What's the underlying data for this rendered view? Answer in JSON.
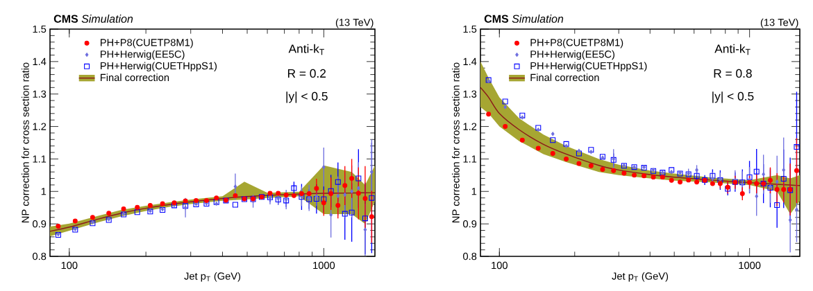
{
  "chart_data": [
    {
      "type": "scatter",
      "title": "**CMS** *Simulation*",
      "xlabel": "Jet p$_{T}$ (GeV)",
      "ylabel": "NP correction for cross section ratio",
      "annotations": [
        "(13 TeV)",
        "Anti-k$_{T}$",
        "R = 0.2",
        "|y| < 0.5"
      ],
      "log": "x",
      "legend": "top left",
      "xlim": [
        84,
        1588
      ],
      "xticks": [
        100,
        1000
      ],
      "ylim": [
        0.8,
        1.5
      ],
      "yticks": [
        0.8,
        0.9,
        1,
        1.1,
        1.2,
        1.3,
        1.4,
        1.5
      ],
      "x": [
        90.5,
        105.5,
        123.5,
        143,
        163.5,
        185,
        208,
        232.5,
        258.5,
        286,
        315,
        346,
        378.5,
        412.5,
        449,
        487.5,
        527.5,
        570,
        615,
        662,
        711.5,
        763.5,
        818,
        875.5,
        936,
        999.5,
        1066.5,
        1136.5,
        1210,
        1287.5,
        1368.5,
        1453.5,
        1542.5
      ],
      "series": [
        {
          "name": "PH+P8(CUETP8M1)",
          "color": "#ff0000",
          "marker": "circle",
          "values": [
            0.893,
            0.909,
            0.92,
            0.933,
            0.946,
            0.951,
            0.957,
            0.962,
            0.965,
            0.971,
            0.972,
            0.972,
            0.98,
            0.973,
            0.987,
            0.977,
            0.977,
            0.983,
            0.994,
            0.994,
            0.989,
            0.987,
            0.993,
            0.993,
            1.009,
            0.965,
            0.993,
            0.957,
            1.018,
            1.04,
            0.994,
            0.978,
            0.922
          ],
          "errors": [
            null,
            null,
            null,
            null,
            null,
            null,
            null,
            null,
            null,
            null,
            null,
            null,
            null,
            null,
            null,
            null,
            null,
            null,
            null,
            null,
            null,
            null,
            null,
            null,
            0.03,
            0.04,
            0.05,
            0.04,
            0.06,
            0.06,
            0.08,
            0.1,
            0.08
          ]
        },
        {
          "name": "PH+Herwig(EE5C)",
          "color": "#6f6fdf",
          "marker": "diamond",
          "values": [
            0.868,
            0.884,
            0.905,
            0.914,
            0.931,
            null,
            0.94,
            0.945,
            0.958,
            0.95,
            0.961,
            0.963,
            0.962,
            null,
            1.015,
            null,
            0.97,
            null,
            0.98,
            0.978,
            0.975,
            null,
            0.985,
            0.98,
            0.985,
            1.075,
            0.928,
            0.986,
            0.99,
            1.0,
            1.01,
            0.882,
            1.06
          ],
          "errors": [
            null,
            null,
            null,
            null,
            null,
            null,
            null,
            null,
            null,
            0.03,
            null,
            null,
            null,
            null,
            0.04,
            null,
            0.02,
            null,
            0.02,
            0.02,
            0.03,
            null,
            0.03,
            0.04,
            0.03,
            0.06,
            0.07,
            0.06,
            0.07,
            0.08,
            0.08,
            0.08,
            0.1
          ]
        },
        {
          "name": "PH+Herwig(CUETHppS1)",
          "color": "#0000ff",
          "marker": "square",
          "values": [
            0.866,
            0.882,
            0.902,
            0.912,
            0.929,
            0.936,
            0.938,
            0.943,
            0.957,
            0.955,
            0.96,
            0.962,
            0.967,
            0.972,
            0.959,
            0.976,
            0.976,
            0.983,
            0.982,
            0.975,
            0.972,
            1.01,
            0.983,
            0.976,
            0.977,
            0.976,
            1.001,
            1.029,
            0.931,
            0.935,
            1.04,
            0.917,
            0.98
          ],
          "errors": [
            null,
            null,
            null,
            null,
            null,
            null,
            null,
            null,
            null,
            null,
            null,
            null,
            null,
            null,
            null,
            null,
            null,
            null,
            0.015,
            0.015,
            0.02,
            0.02,
            0.04,
            0.03,
            0.045,
            0.04,
            0.05,
            0.06,
            0.08,
            0.09,
            0.09,
            0.11,
            0.17
          ]
        },
        {
          "name": "Final correction",
          "type": "line",
          "color": "#8b1a1a",
          "x": [
            84,
            100,
            130,
            160,
            200,
            250,
            300,
            400,
            487.5,
            600,
            800,
            999.5,
            1287.5,
            1453.5,
            1588
          ],
          "values": [
            0.877,
            0.89,
            0.915,
            0.933,
            0.948,
            0.96,
            0.968,
            0.978,
            0.984,
            0.988,
            0.992,
            0.994,
            0.995,
            0.996,
            0.996
          ],
          "lower": [
            0.862,
            0.879,
            0.905,
            0.923,
            0.94,
            0.953,
            0.961,
            0.971,
            0.975,
            0.98,
            0.985,
            0.93,
            0.93,
            0.9,
            0.97
          ],
          "upper": [
            0.892,
            0.901,
            0.925,
            0.943,
            0.956,
            0.967,
            0.975,
            0.985,
            1.03,
            0.996,
            0.999,
            1.08,
            1.06,
            1.02,
            1.08
          ]
        }
      ]
    },
    {
      "type": "scatter",
      "title": "**CMS** *Simulation*",
      "xlabel": "Jet p$_{T}$ (GeV)",
      "ylabel": "NP correction for cross section ratio",
      "annotations": [
        "(13 TeV)",
        "Anti-k$_{T}$",
        "R = 0.8",
        "|y| < 0.5"
      ],
      "log": "x",
      "legend": "top left",
      "xlim": [
        84,
        1588
      ],
      "xticks": [
        100,
        1000
      ],
      "ylim": [
        0.8,
        1.5
      ],
      "yticks": [
        0.8,
        0.9,
        1,
        1.1,
        1.2,
        1.3,
        1.4,
        1.5
      ],
      "x": [
        90.5,
        105.5,
        123.5,
        143,
        163.5,
        185,
        208,
        232.5,
        258.5,
        286,
        315,
        346,
        378.5,
        412.5,
        449,
        487.5,
        527.5,
        570,
        615,
        662,
        711.5,
        763.5,
        818,
        875.5,
        936,
        999.5,
        1066.5,
        1136.5,
        1210,
        1287.5,
        1368.5,
        1453.5,
        1542.5
      ],
      "series": [
        {
          "name": "PH+P8(CUETP8M1)",
          "color": "#ff0000",
          "marker": "circle",
          "values": [
            1.238,
            1.2,
            1.158,
            1.133,
            1.117,
            1.1,
            1.086,
            1.079,
            1.068,
            1.064,
            1.056,
            1.05,
            1.048,
            1.044,
            1.044,
            1.034,
            1.029,
            1.035,
            1.029,
            1.034,
            1.024,
            1.024,
            1.013,
            1.028,
            0.993,
            1.028,
            1.024,
            1.024,
            1.034,
            1.006,
            1.006,
            1.006,
            1.064
          ],
          "errors": [
            null,
            null,
            null,
            null,
            null,
            null,
            null,
            null,
            null,
            null,
            null,
            null,
            null,
            null,
            null,
            null,
            null,
            null,
            null,
            null,
            null,
            0.015,
            0.02,
            0.02,
            0.02,
            0.02,
            0.03,
            0.02,
            0.04,
            0.05,
            0.04,
            0.08,
            0.1
          ]
        },
        {
          "name": "PH+Herwig(EE5C)",
          "color": "#6f6fdf",
          "marker": "diamond",
          "values": [
            1.34,
            1.26,
            1.228,
            1.19,
            1.177,
            1.14,
            1.125,
            1.122,
            1.104,
            1.1,
            1.08,
            1.075,
            1.075,
            1.066,
            1.058,
            1.06,
            1.058,
            1.055,
            1.066,
            null,
            1.04,
            1.038,
            null,
            1.035,
            1.022,
            1.035,
            0.985,
            1.053,
            1.015,
            1.03,
            1.066,
            0.912,
            0.944
          ],
          "errors": [
            null,
            null,
            null,
            null,
            null,
            null,
            null,
            null,
            null,
            0.03,
            null,
            null,
            null,
            null,
            null,
            null,
            null,
            0.015,
            0.015,
            null,
            0.02,
            0.02,
            null,
            0.03,
            0.04,
            0.04,
            0.06,
            0.06,
            0.05,
            0.08,
            0.1,
            0.1,
            0.1
          ]
        },
        {
          "name": "PH+Herwig(CUETHppS1)",
          "color": "#0000ff",
          "marker": "square",
          "values": [
            1.343,
            1.277,
            1.234,
            1.196,
            1.158,
            1.146,
            1.117,
            1.128,
            1.107,
            1.097,
            1.079,
            1.075,
            1.073,
            1.063,
            1.058,
            1.066,
            1.055,
            1.053,
            1.048,
            1.035,
            1.048,
            1.035,
            1.008,
            1.029,
            1.028,
            1.044,
            1.061,
            1.024,
            1.011,
            0.958,
            1.039,
            1.004,
            1.137
          ],
          "errors": [
            null,
            null,
            null,
            null,
            null,
            null,
            null,
            null,
            null,
            0.02,
            null,
            null,
            null,
            null,
            null,
            null,
            null,
            null,
            0.02,
            0.015,
            0.02,
            0.03,
            0.02,
            0.03,
            0.04,
            0.05,
            0.07,
            0.06,
            0.06,
            0.07,
            0.09,
            0.1,
            0.17
          ]
        },
        {
          "name": "Final correction",
          "type": "line",
          "color": "#8b1a1a",
          "x": [
            84,
            90.5,
            100,
            120,
            150,
            185,
            250,
            300,
            400,
            500,
            700,
            999.5,
            1287.5,
            1453.5,
            1588
          ],
          "values": [
            1.32,
            1.29,
            1.24,
            1.19,
            1.145,
            1.115,
            1.08,
            1.066,
            1.052,
            1.044,
            1.035,
            1.027,
            1.022,
            1.02,
            1.018
          ],
          "lower": [
            1.26,
            1.24,
            1.2,
            1.155,
            1.115,
            1.09,
            1.06,
            1.05,
            1.04,
            1.033,
            1.028,
            1.02,
            1.0,
            0.93,
            0.97
          ],
          "upper": [
            1.4,
            1.35,
            1.29,
            1.225,
            1.175,
            1.14,
            1.1,
            1.082,
            1.064,
            1.055,
            1.043,
            1.035,
            1.05,
            1.04,
            1.05
          ]
        }
      ]
    }
  ]
}
